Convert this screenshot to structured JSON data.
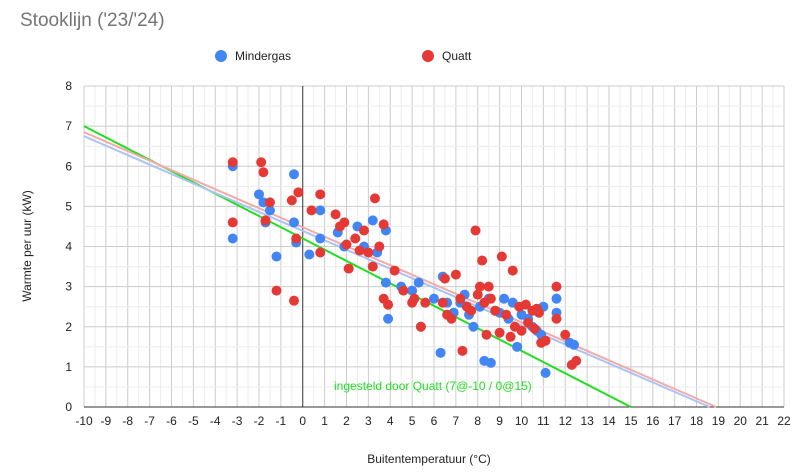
{
  "title": "Stooklijn ('23/'24)",
  "chart_data": {
    "type": "scatter",
    "title": "Stooklijn ('23/'24)",
    "xlabel": "Buitentemperatuur (°C)",
    "ylabel": "Warmte per uur (kW)",
    "xlim": [
      -10,
      22
    ],
    "ylim": [
      0,
      8
    ],
    "grid": true,
    "legend": "top",
    "series": [
      {
        "name": "Mindergas",
        "color": "#4285f4",
        "points": [
          [
            -3.2,
            6.0
          ],
          [
            -3.2,
            4.2
          ],
          [
            -2.0,
            5.3
          ],
          [
            -1.8,
            5.1
          ],
          [
            -1.7,
            4.6
          ],
          [
            -1.5,
            4.9
          ],
          [
            -1.2,
            3.75
          ],
          [
            -0.4,
            5.8
          ],
          [
            -0.4,
            4.6
          ],
          [
            -0.3,
            4.1
          ],
          [
            0.3,
            3.8
          ],
          [
            0.8,
            4.2
          ],
          [
            0.8,
            4.9
          ],
          [
            1.6,
            4.35
          ],
          [
            1.9,
            4.0
          ],
          [
            2.5,
            4.5
          ],
          [
            2.8,
            4.0
          ],
          [
            3.2,
            4.65
          ],
          [
            3.4,
            3.85
          ],
          [
            3.8,
            4.4
          ],
          [
            3.8,
            3.1
          ],
          [
            3.9,
            2.2
          ],
          [
            4.5,
            3.0
          ],
          [
            5.0,
            2.9
          ],
          [
            5.3,
            3.1
          ],
          [
            5.4,
            2.0
          ],
          [
            6.0,
            2.7
          ],
          [
            6.3,
            1.35
          ],
          [
            6.4,
            3.25
          ],
          [
            6.6,
            2.6
          ],
          [
            6.9,
            2.35
          ],
          [
            7.2,
            2.6
          ],
          [
            7.4,
            2.8
          ],
          [
            7.6,
            2.3
          ],
          [
            7.8,
            2.0
          ],
          [
            8.1,
            2.5
          ],
          [
            8.3,
            1.15
          ],
          [
            8.5,
            2.7
          ],
          [
            8.6,
            1.1
          ],
          [
            8.8,
            2.4
          ],
          [
            9.0,
            2.35
          ],
          [
            9.2,
            2.7
          ],
          [
            9.4,
            2.2
          ],
          [
            9.6,
            2.6
          ],
          [
            9.8,
            1.5
          ],
          [
            10.0,
            2.3
          ],
          [
            10.3,
            2.2
          ],
          [
            10.5,
            2.0
          ],
          [
            10.7,
            1.9
          ],
          [
            10.9,
            1.8
          ],
          [
            11.0,
            2.5
          ],
          [
            11.1,
            0.85
          ],
          [
            11.6,
            2.7
          ],
          [
            11.6,
            2.35
          ],
          [
            12.2,
            1.6
          ],
          [
            12.4,
            1.55
          ]
        ]
      },
      {
        "name": "Quatt",
        "color": "#e53935",
        "points": [
          [
            -3.2,
            6.1
          ],
          [
            -3.2,
            4.6
          ],
          [
            -1.9,
            6.1
          ],
          [
            -1.8,
            5.85
          ],
          [
            -1.7,
            4.65
          ],
          [
            -1.5,
            5.1
          ],
          [
            -1.2,
            2.9
          ],
          [
            -0.5,
            5.15
          ],
          [
            -0.4,
            2.65
          ],
          [
            -0.3,
            4.2
          ],
          [
            -0.2,
            5.35
          ],
          [
            0.4,
            4.9
          ],
          [
            0.8,
            5.3
          ],
          [
            0.8,
            3.85
          ],
          [
            1.5,
            4.8
          ],
          [
            1.7,
            4.5
          ],
          [
            1.9,
            4.6
          ],
          [
            2.0,
            4.05
          ],
          [
            2.1,
            3.45
          ],
          [
            2.4,
            4.2
          ],
          [
            2.6,
            3.9
          ],
          [
            2.8,
            4.4
          ],
          [
            3.0,
            3.85
          ],
          [
            3.2,
            3.5
          ],
          [
            3.3,
            5.2
          ],
          [
            3.5,
            4.0
          ],
          [
            3.7,
            4.55
          ],
          [
            3.7,
            2.7
          ],
          [
            3.9,
            2.55
          ],
          [
            4.2,
            3.4
          ],
          [
            4.6,
            2.9
          ],
          [
            5.0,
            2.6
          ],
          [
            5.1,
            2.7
          ],
          [
            5.4,
            2.0
          ],
          [
            5.6,
            2.6
          ],
          [
            6.4,
            2.6
          ],
          [
            6.5,
            3.2
          ],
          [
            6.6,
            2.3
          ],
          [
            6.8,
            2.2
          ],
          [
            7.0,
            3.3
          ],
          [
            7.2,
            2.7
          ],
          [
            7.3,
            1.4
          ],
          [
            7.5,
            2.5
          ],
          [
            7.7,
            2.4
          ],
          [
            7.9,
            4.4
          ],
          [
            8.0,
            2.8
          ],
          [
            8.1,
            3.0
          ],
          [
            8.2,
            3.65
          ],
          [
            8.3,
            2.6
          ],
          [
            8.4,
            1.8
          ],
          [
            8.5,
            3.0
          ],
          [
            8.6,
            2.7
          ],
          [
            8.8,
            2.4
          ],
          [
            9.0,
            1.85
          ],
          [
            9.1,
            3.75
          ],
          [
            9.3,
            2.3
          ],
          [
            9.5,
            1.75
          ],
          [
            9.6,
            3.4
          ],
          [
            9.7,
            2.0
          ],
          [
            9.9,
            2.5
          ],
          [
            10.0,
            1.9
          ],
          [
            10.2,
            2.55
          ],
          [
            10.3,
            2.1
          ],
          [
            10.5,
            2.4
          ],
          [
            10.6,
            1.95
          ],
          [
            10.7,
            2.45
          ],
          [
            10.8,
            2.35
          ],
          [
            10.9,
            1.6
          ],
          [
            11.1,
            1.65
          ],
          [
            11.6,
            3.0
          ],
          [
            11.6,
            2.2
          ],
          [
            12.0,
            1.8
          ],
          [
            12.3,
            1.05
          ],
          [
            12.5,
            1.15
          ]
        ]
      }
    ],
    "lines": [
      {
        "label": "ingesteld door Quatt (7@-10 / 0@15)",
        "color": "#22dd22",
        "points": [
          [
            -10,
            7
          ],
          [
            15,
            0
          ]
        ]
      },
      {
        "color": "#aac4f4",
        "points": [
          [
            -10,
            6.75
          ],
          [
            18.6,
            0
          ]
        ]
      },
      {
        "color": "#f2aaaa",
        "points": [
          [
            -10,
            6.85
          ],
          [
            18.9,
            0
          ]
        ]
      }
    ],
    "annotation": "ingesteld door Quatt (7@-10 / 0@15)"
  }
}
